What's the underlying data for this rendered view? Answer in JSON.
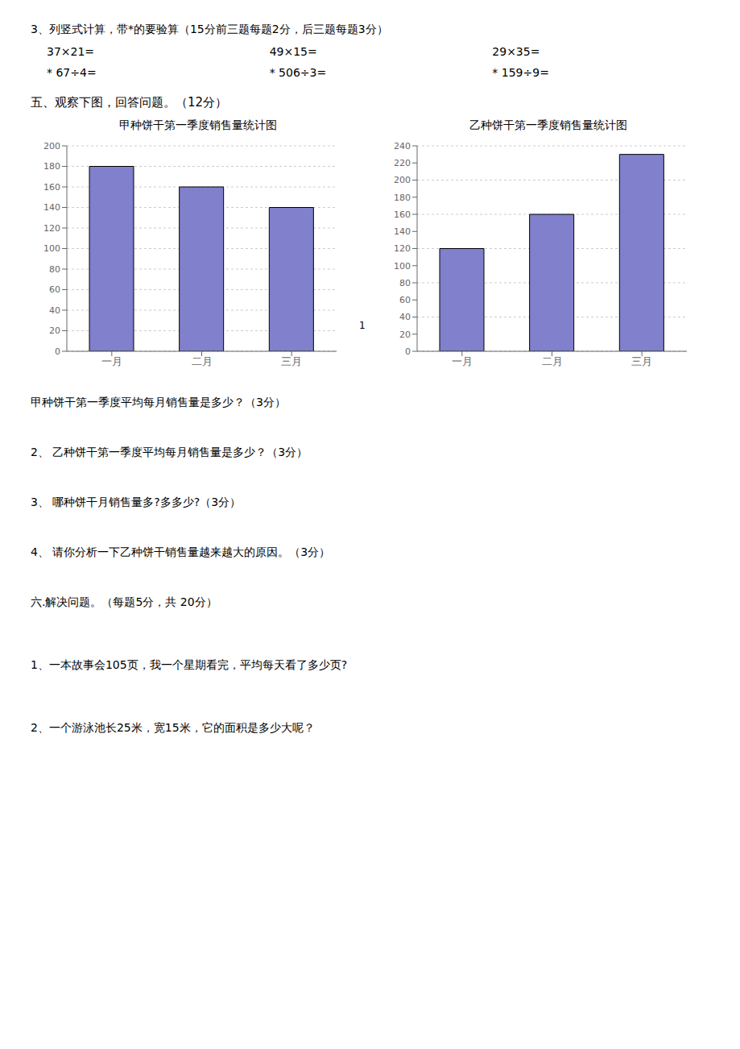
{
  "chart_data": [
    {
      "type": "bar",
      "title": "甲种饼干第一季度销售量统计图",
      "categories": [
        "一月",
        "二月",
        "三月"
      ],
      "values": [
        180,
        160,
        140
      ],
      "color": "#8080cc",
      "ylim": [
        0,
        200
      ],
      "yticks": [
        0,
        20,
        40,
        60,
        80,
        100,
        120,
        140,
        160,
        180,
        200
      ],
      "grid": true,
      "annotations": [
        "3、列竖式计算，带*的要验算（15分前三题每题\u00002分，后三题每题\u00003分）",
        "37×21=",
        "49×15=",
        "29×35=",
        "* 67÷4=",
        "* 506÷3=",
        "* 159÷9=",
        "五、观察下图，回答问题。（12分）",
        "1"
      ]
    },
    {
      "type": "bar",
      "title": "乙种饼干第一季度销售量统计图",
      "categories": [
        "一月",
        "二月",
        "三月"
      ],
      "values": [
        120,
        160,
        230
      ],
      "color": "#8080cc",
      "ylim": [
        0,
        240
      ],
      "yticks": [
        0,
        20,
        40,
        60,
        80,
        100,
        120,
        140,
        160,
        180,
        200,
        220,
        240
      ],
      "grid": true,
      "annotations": [
        "甲种饼干第一季度平均每月销售量是多少？（3分）",
        "2、 乙种饼干第一季度平均每月销售量是多少？（3分）",
        "3、 哪种饼干月销售量多?多多少?（3分）",
        "4、 请你分析一下乙种饼干销售量越来越大的原因。（3分）",
        "六.解决问题。（每题\u00005分，共 20分）",
        "1、一本故事会105页，我一个星期看完，平均每天看了多少页?",
        "2、一个游泳池长25米，宽15米，它的面积是多少大呢？"
      ]
    }
  ]
}
